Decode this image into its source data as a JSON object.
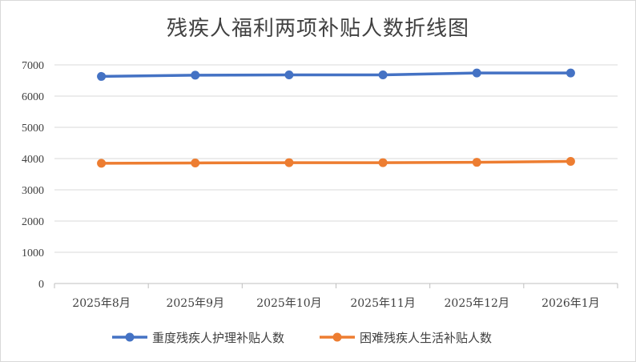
{
  "chart_data": {
    "type": "line",
    "title": "残疾人福利两项补贴人数折线图",
    "categories": [
      "2025年8月",
      "2025年9月",
      "2025年10月",
      "2025年11月",
      "2025年12月",
      "2026年1月"
    ],
    "series": [
      {
        "name": "重度残疾人护理补贴人数",
        "color": "#4472c4",
        "values": [
          6630,
          6670,
          6680,
          6680,
          6740,
          6740
        ]
      },
      {
        "name": "困难残疾人生活补贴人数",
        "color": "#ed7d31",
        "values": [
          3850,
          3860,
          3870,
          3870,
          3880,
          3910
        ]
      }
    ],
    "ylim": [
      0,
      7000
    ],
    "yticks": [
      0,
      1000,
      2000,
      3000,
      4000,
      5000,
      6000,
      7000
    ],
    "grid": true,
    "legend_position": "bottom"
  }
}
